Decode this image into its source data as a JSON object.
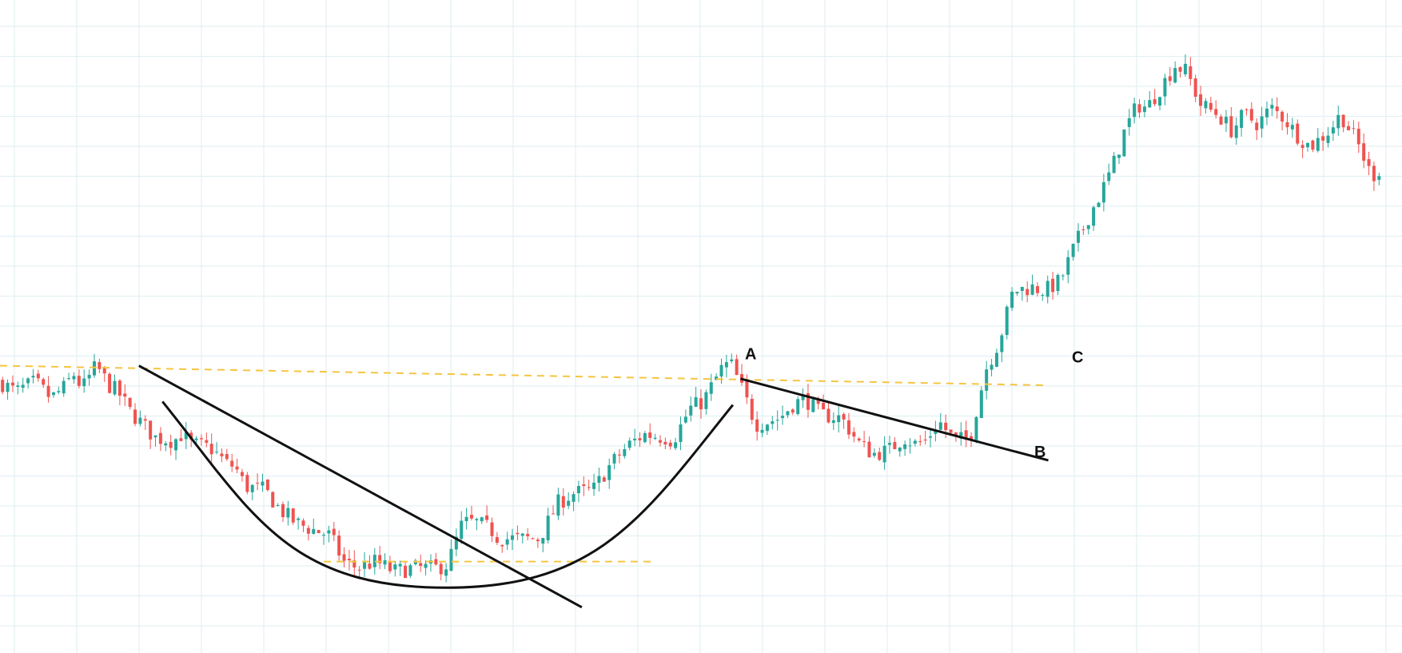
{
  "chart_data": {
    "type": "candlestick",
    "title": "",
    "xlabel": "",
    "ylabel": "",
    "grid": true,
    "ylim": [
      0,
      100
    ],
    "colors": {
      "up": "#26a69a",
      "down": "#ef5350",
      "grid": "#dfeef2",
      "annotation_line": "#111111",
      "level_line": "#f5c542"
    },
    "price_path": [
      [
        0,
        41.5
      ],
      [
        2.5,
        40.0
      ],
      [
        5.5,
        41.5
      ],
      [
        8.0,
        39.0
      ],
      [
        10.5,
        41.0
      ],
      [
        11.4,
        43.0
      ],
      [
        12.9,
        40.5
      ],
      [
        15.1,
        44.0
      ],
      [
        17.1,
        41.0
      ],
      [
        18.5,
        40.0
      ],
      [
        20.4,
        37.0
      ],
      [
        22.9,
        34.5
      ],
      [
        24.2,
        33.0
      ],
      [
        27.3,
        32.5
      ],
      [
        28.5,
        33.5
      ],
      [
        30.0,
        32.0
      ],
      [
        32.9,
        31.5
      ],
      [
        35.6,
        29.0
      ],
      [
        36.9,
        28.5
      ],
      [
        38.5,
        25.5
      ],
      [
        41.5,
        25.0
      ],
      [
        43.9,
        22.0
      ],
      [
        46.3,
        20.0
      ],
      [
        48.7,
        19.0
      ],
      [
        51.8,
        18.0
      ],
      [
        53.9,
        14.0
      ],
      [
        56.2,
        13.0
      ],
      [
        58.9,
        14.0
      ],
      [
        61.8,
        12.5
      ],
      [
        64.8,
        13.0
      ],
      [
        68.3,
        13.0
      ],
      [
        70.2,
        13.5
      ],
      [
        72.6,
        20.0
      ],
      [
        74.7,
        20.0
      ],
      [
        76.9,
        19.0
      ],
      [
        78.3,
        17.5
      ],
      [
        81.3,
        17.5
      ],
      [
        84.6,
        17.5
      ],
      [
        87.6,
        23.0
      ],
      [
        90.1,
        24.5
      ],
      [
        93.1,
        25.0
      ],
      [
        95.9,
        29.0
      ],
      [
        98.8,
        32.0
      ],
      [
        101.1,
        33.5
      ],
      [
        104.4,
        33.0
      ],
      [
        105.6,
        32.5
      ],
      [
        108.3,
        37.5
      ],
      [
        110.3,
        38.5
      ],
      [
        113.2,
        43.5
      ],
      [
        114.6,
        44.5
      ],
      [
        116.6,
        40.0
      ],
      [
        118.6,
        35.0
      ],
      [
        120.6,
        35.5
      ],
      [
        122.4,
        36.0
      ],
      [
        124.3,
        38.0
      ],
      [
        126.3,
        39.0
      ],
      [
        128.8,
        36.5
      ],
      [
        132.0,
        36.0
      ],
      [
        134.9,
        32.0
      ],
      [
        137.0,
        30.5
      ],
      [
        139.4,
        31.0
      ],
      [
        141.9,
        33.0
      ],
      [
        143.5,
        32.0
      ],
      [
        145.3,
        32.5
      ],
      [
        147.3,
        35.5
      ],
      [
        149.8,
        32.5
      ],
      [
        152.2,
        33.0
      ],
      [
        154.7,
        43.5
      ],
      [
        156.7,
        47.5
      ],
      [
        159.0,
        55.5
      ],
      [
        161.9,
        56.0
      ],
      [
        164.0,
        55.5
      ],
      [
        166.4,
        57.0
      ],
      [
        168.5,
        62.0
      ],
      [
        170.9,
        67.0
      ],
      [
        172.8,
        70.5
      ],
      [
        174.6,
        74.5
      ],
      [
        176.5,
        80.0
      ],
      [
        178.5,
        84.0
      ],
      [
        180.0,
        83.5
      ],
      [
        182.4,
        87.0
      ],
      [
        184.4,
        90.0
      ],
      [
        186.2,
        89.0
      ],
      [
        188.4,
        84.0
      ],
      [
        191.1,
        82.5
      ],
      [
        193.3,
        80.0
      ],
      [
        195.2,
        82.5
      ],
      [
        197.4,
        81.0
      ],
      [
        199.4,
        83.5
      ],
      [
        201.4,
        82.0
      ],
      [
        203.4,
        79.5
      ],
      [
        205.6,
        77.5
      ],
      [
        208.6,
        80.0
      ],
      [
        210.4,
        82.5
      ],
      [
        213.3,
        77.5
      ],
      [
        215.2,
        73.0
      ],
      [
        216.5,
        74.0
      ]
    ],
    "annotations": [
      {
        "label": "A",
        "x": 116.9,
        "y": 45.0
      },
      {
        "label": "B",
        "x": 162.3,
        "y": 30.0
      },
      {
        "label": "C",
        "x": 168.2,
        "y": 44.5
      }
    ],
    "trendlines": [
      {
        "x": [
          21.8,
          91.3
        ],
        "y": [
          44.0,
          7.0
        ]
      },
      {
        "x": [
          116.2,
          164.5
        ],
        "y": [
          42.0,
          29.5
        ]
      }
    ],
    "cup_curve": {
      "start": [
        25.5,
        38.5
      ],
      "bottom": [
        70.0,
        10.0
      ],
      "end": [
        115.0,
        38.0
      ]
    },
    "level_lines": [
      {
        "x": [
          0,
          164.2
        ],
        "y": [
          44.0,
          41.0
        ]
      },
      {
        "x": [
          50.8,
          102.4
        ],
        "y": [
          14.0,
          14.0
        ]
      }
    ]
  }
}
